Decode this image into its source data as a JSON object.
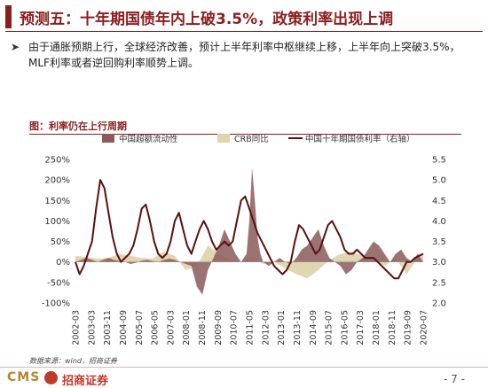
{
  "slide": {
    "title": "预测五：十年期国债年内上破3.5%，政策利率出现上调",
    "bullet_icon": "chevron-right-icon",
    "bullet_text": "由于通胀预期上行，全球经济改善，预计上半年利率中枢继续上移，上半年向上突破3.5%，MLF利率或者逆回购利率顺势上调。",
    "source": "数据来源：wind，招商证券",
    "page": "- 7 -",
    "logo_text": "CMS",
    "logo_name": "招商证券"
  },
  "colors": {
    "brand": "#8b1d1d",
    "credit_area": "#8b5a5a",
    "crb_area": "#ded5ae",
    "bond_line": "#5a1010"
  },
  "chart_data": {
    "type": "area",
    "caption": "图：利率仍在上行周期",
    "x_tick_labels": [
      "2002-03",
      "2003-03",
      "2003-11",
      "2004-09",
      "2005-07",
      "2006-05",
      "2007-03",
      "2008-01",
      "2008-11",
      "2009-09",
      "2010-07",
      "2011-05",
      "2012-03",
      "2013-01",
      "2013-11",
      "2014-09",
      "2015-07",
      "2016-05",
      "2017-03",
      "2018-01",
      "2018-11",
      "2019-09",
      "2020-07"
    ],
    "y_left": {
      "ticks": [
        "250%",
        "200%",
        "150%",
        "100%",
        "50%",
        "0%",
        "-50%",
        "-100%"
      ],
      "range": [
        -100,
        250
      ]
    },
    "y_right": {
      "ticks": [
        "5.5",
        "5.0",
        "4.5",
        "4.0",
        "3.5",
        "3.0",
        "2.5",
        "2.0"
      ],
      "range": [
        2.0,
        5.5
      ]
    },
    "legend": [
      "中国超额流动性",
      "CRB同比",
      "中国十年期国债利率（右轴）"
    ],
    "series": [
      {
        "name": "中国超额流动性",
        "kind": "area",
        "axis": "left",
        "x": [
          0,
          4,
          8,
          12,
          16,
          20,
          24,
          28,
          32,
          36,
          40,
          44,
          48,
          52,
          56,
          60,
          64,
          68,
          72,
          76,
          80,
          84,
          88,
          92,
          96,
          100,
          104,
          108,
          112,
          116,
          120,
          124,
          126,
          128,
          130,
          132,
          134,
          136,
          140,
          144,
          148,
          152,
          156,
          160,
          164,
          168,
          172,
          176,
          180,
          184,
          188,
          192,
          196,
          200,
          204,
          208,
          212,
          216,
          220,
          224,
          228,
          232,
          236,
          240,
          244,
          248,
          252
        ],
        "y": [
          0,
          5,
          10,
          5,
          0,
          5,
          10,
          5,
          2,
          0,
          -5,
          -2,
          3,
          5,
          2,
          0,
          5,
          8,
          5,
          0,
          -5,
          -10,
          -60,
          -80,
          -20,
          10,
          40,
          80,
          50,
          20,
          0,
          20,
          100,
          230,
          150,
          60,
          20,
          0,
          -10,
          0,
          10,
          0,
          -5,
          10,
          30,
          40,
          60,
          80,
          40,
          10,
          0,
          -10,
          -30,
          -20,
          0,
          10,
          30,
          50,
          40,
          20,
          0,
          20,
          30,
          10,
          0,
          20,
          0
        ]
      },
      {
        "name": "CRB同比",
        "kind": "area",
        "axis": "left",
        "x": [
          0,
          8,
          16,
          24,
          32,
          40,
          48,
          56,
          64,
          72,
          80,
          88,
          96,
          104,
          112,
          120,
          128,
          136,
          144,
          152,
          160,
          168,
          176,
          184,
          192,
          200,
          208,
          216,
          224,
          232,
          240,
          248,
          252
        ],
        "y": [
          15,
          12,
          8,
          10,
          20,
          15,
          10,
          8,
          25,
          15,
          -20,
          -10,
          40,
          20,
          5,
          0,
          10,
          -5,
          0,
          -15,
          -30,
          -40,
          -20,
          5,
          20,
          25,
          15,
          5,
          -10,
          10,
          -30,
          10,
          20
        ]
      },
      {
        "name": "中国十年期国债利率（右轴）",
        "kind": "line",
        "axis": "right",
        "x": [
          0,
          3,
          6,
          9,
          12,
          15,
          18,
          21,
          24,
          27,
          30,
          33,
          36,
          39,
          42,
          45,
          48,
          51,
          54,
          57,
          60,
          63,
          66,
          69,
          72,
          75,
          78,
          81,
          84,
          87,
          90,
          93,
          96,
          99,
          102,
          105,
          108,
          111,
          114,
          117,
          120,
          123,
          126,
          129,
          132,
          135,
          138,
          141,
          144,
          147,
          150,
          153,
          156,
          159,
          162,
          165,
          168,
          171,
          174,
          177,
          180,
          183,
          186,
          189,
          192,
          195,
          198,
          201,
          204,
          207,
          210,
          213,
          216,
          219,
          222,
          225,
          228,
          231,
          234,
          237,
          240,
          243,
          246,
          249,
          252
        ],
        "y": [
          3.0,
          2.7,
          2.9,
          3.2,
          3.5,
          4.3,
          5.0,
          4.8,
          4.2,
          3.6,
          3.2,
          3.0,
          3.1,
          3.2,
          3.4,
          3.8,
          4.3,
          4.4,
          4.0,
          3.5,
          3.2,
          3.1,
          3.2,
          3.5,
          4.0,
          4.2,
          3.8,
          3.4,
          3.2,
          3.5,
          3.8,
          4.0,
          3.8,
          3.5,
          3.3,
          3.4,
          3.5,
          3.4,
          3.5,
          4.0,
          4.5,
          4.6,
          4.3,
          4.0,
          3.7,
          3.5,
          3.3,
          3.1,
          2.9,
          2.8,
          2.7,
          2.8,
          3.0,
          3.5,
          3.9,
          3.8,
          3.6,
          3.4,
          3.2,
          3.3,
          3.6,
          3.9,
          4.0,
          3.8,
          3.6,
          3.3,
          3.2,
          3.2,
          3.3,
          3.2,
          3.1,
          3.1,
          3.1,
          3.0,
          2.9,
          2.8,
          2.7,
          2.6,
          2.6,
          2.8,
          3.0,
          3.0,
          3.1,
          3.15,
          3.2
        ]
      }
    ]
  }
}
